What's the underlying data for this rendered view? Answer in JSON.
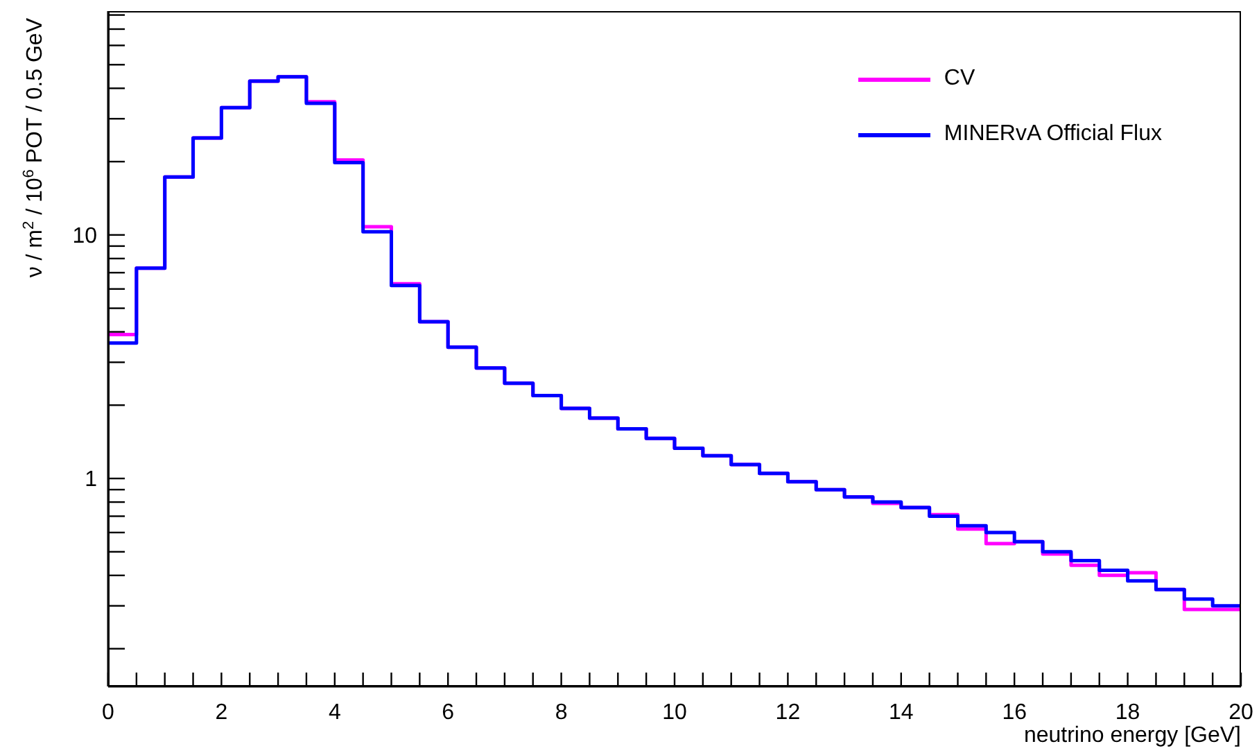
{
  "chart_data": {
    "type": "histogram",
    "xlabel": "neutrino energy [GeV]",
    "ylabel": "ν / m$^{2}$ / 10$^{6}$ POT / 0.5 GeV",
    "bins": [
      0,
      0.5,
      1,
      1.5,
      2,
      2.5,
      3,
      3.5,
      4,
      4.5,
      5,
      5.5,
      6,
      6.5,
      7,
      7.5,
      8,
      8.5,
      9,
      9.5,
      10,
      10.5,
      11,
      11.5,
      12,
      12.5,
      13,
      13.5,
      14,
      14.5,
      15,
      15.5,
      16,
      16.5,
      17,
      17.5,
      18,
      18.5,
      19,
      19.5,
      20
    ],
    "series": [
      {
        "name": "CV",
        "color": "#ff00ff",
        "values": [
          3.9,
          7.3,
          17.3,
          25,
          33.3,
          42.8,
          44.6,
          35.2,
          20.3,
          10.8,
          6.3,
          4.4,
          3.46,
          2.84,
          2.46,
          2.19,
          1.94,
          1.77,
          1.6,
          1.46,
          1.33,
          1.24,
          1.14,
          1.05,
          0.97,
          0.9,
          0.84,
          0.79,
          0.76,
          0.71,
          0.62,
          0.54,
          0.55,
          0.49,
          0.44,
          0.4,
          0.41,
          0.35,
          0.29,
          0.29
        ]
      },
      {
        "name": "MINERvA Official Flux",
        "color": "#0000ff",
        "values": [
          3.6,
          7.3,
          17.3,
          25,
          33.3,
          42.8,
          44.6,
          34.7,
          19.8,
          10.3,
          6.2,
          4.4,
          3.46,
          2.84,
          2.46,
          2.19,
          1.94,
          1.77,
          1.6,
          1.46,
          1.33,
          1.24,
          1.14,
          1.05,
          0.97,
          0.9,
          0.84,
          0.8,
          0.76,
          0.7,
          0.64,
          0.6,
          0.55,
          0.5,
          0.46,
          0.42,
          0.38,
          0.35,
          0.32,
          0.3
        ]
      }
    ],
    "xlim": [
      0,
      20
    ],
    "xticks": [
      0,
      {
        "value": 0.5,
        "label": null
      },
      {
        "value": 1,
        "label": null
      },
      {
        "value": 1.5,
        "label": null
      },
      2,
      {
        "value": 2.5,
        "label": null
      },
      {
        "value": 3,
        "label": null
      },
      {
        "value": 3.5,
        "label": null
      },
      4,
      {
        "value": 4.5,
        "label": null
      },
      {
        "value": 5,
        "label": null
      },
      {
        "value": 5.5,
        "label": null
      },
      6,
      {
        "value": 6.5,
        "label": null
      },
      {
        "value": 7,
        "label": null
      },
      {
        "value": 7.5,
        "label": null
      },
      8,
      {
        "value": 8.5,
        "label": null
      },
      {
        "value": 9,
        "label": null
      },
      {
        "value": 9.5,
        "label": null
      },
      10,
      {
        "value": 10.5,
        "label": null
      },
      {
        "value": 11,
        "label": null
      },
      {
        "value": 11.5,
        "label": null
      },
      12,
      {
        "value": 12.5,
        "label": null
      },
      {
        "value": 13,
        "label": null
      },
      {
        "value": 13.5,
        "label": null
      },
      14,
      {
        "value": 14.5,
        "label": null
      },
      {
        "value": 15,
        "label": null
      },
      {
        "value": 15.5,
        "label": null
      },
      16,
      {
        "value": 16.5,
        "label": null
      },
      {
        "value": 17,
        "label": null
      },
      {
        "value": 17.5,
        "label": null
      },
      18,
      {
        "value": 18.5,
        "label": null
      },
      {
        "value": 19,
        "label": null
      },
      {
        "value": 19.5,
        "label": null
      },
      20
    ],
    "ylim": [
      0.14,
      83
    ],
    "yticks": [
      {
        "value": 0.2,
        "label": null
      },
      {
        "value": 0.3,
        "label": null
      },
      {
        "value": 0.4,
        "label": null
      },
      {
        "value": 0.5,
        "label": null
      },
      {
        "value": 0.6,
        "label": null
      },
      {
        "value": 0.7,
        "label": null
      },
      {
        "value": 0.8,
        "label": null
      },
      {
        "value": 0.9,
        "label": null
      },
      1,
      {
        "value": 2,
        "label": null
      },
      {
        "value": 3,
        "label": null
      },
      {
        "value": 4,
        "label": null
      },
      {
        "value": 5,
        "label": null
      },
      {
        "value": 6,
        "label": null
      },
      {
        "value": 7,
        "label": null
      },
      {
        "value": 8,
        "label": null
      },
      {
        "value": 9,
        "label": null
      },
      10,
      {
        "value": 20,
        "label": null
      },
      {
        "value": 30,
        "label": null
      },
      {
        "value": 40,
        "label": null
      },
      {
        "value": 50,
        "label": null
      },
      {
        "value": 60,
        "label": null
      },
      {
        "value": 70,
        "label": null
      },
      {
        "value": 80,
        "label": null
      }
    ],
    "log": "y",
    "grid": false,
    "legend": "top right"
  }
}
